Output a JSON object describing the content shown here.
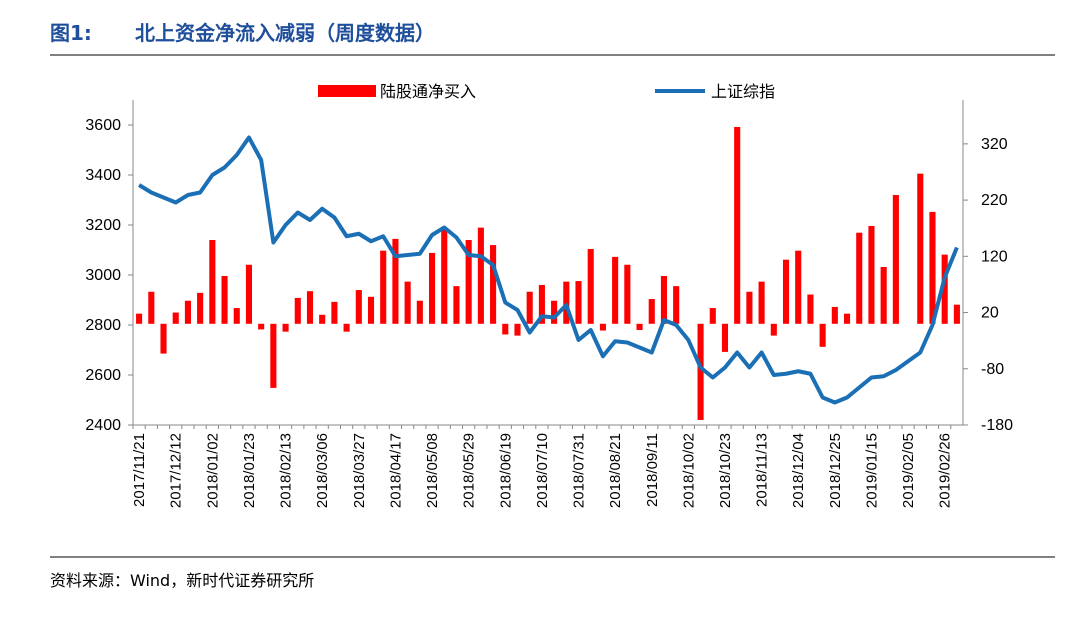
{
  "header": {
    "label": "图1:",
    "title": "北上资金净流入减弱（周度数据）"
  },
  "chart_data": {
    "type": "bar-line",
    "categories": [
      "2017/11/21",
      null,
      null,
      "2017/12/12",
      null,
      null,
      "2018/01/02",
      null,
      null,
      "2018/01/23",
      null,
      null,
      "2018/02/13",
      null,
      null,
      "2018/03/06",
      null,
      null,
      "2018/03/27",
      null,
      null,
      "2018/04/17",
      null,
      null,
      "2018/05/08",
      null,
      null,
      "2018/05/29",
      null,
      null,
      "2018/06/19",
      null,
      null,
      "2018/07/10",
      null,
      null,
      "2018/07/31",
      null,
      null,
      "2018/08/21",
      null,
      null,
      "2018/09/11",
      null,
      null,
      "2018/10/02",
      null,
      null,
      "2018/10/23",
      null,
      null,
      "2018/11/13",
      null,
      null,
      "2018/12/04",
      null,
      null,
      "2018/12/25",
      null,
      null,
      "2019/01/15",
      null,
      null,
      "2019/02/05",
      null,
      null,
      "2019/02/26",
      null
    ],
    "series": [
      {
        "name": "陆股通净买入",
        "type": "bar",
        "axis": "y2",
        "color": "#ff0000",
        "values": [
          18,
          57,
          -53,
          20,
          41,
          55,
          149,
          85,
          28,
          105,
          -10,
          -114,
          -14,
          46,
          58,
          16,
          39,
          -14,
          60,
          48,
          130,
          151,
          75,
          41,
          126,
          167,
          67,
          149,
          171,
          140,
          -19,
          -21,
          57,
          69,
          41,
          75,
          76,
          133,
          -12,
          119,
          105,
          -11,
          44,
          85,
          67,
          0,
          -171,
          28,
          -50,
          350,
          57,
          75,
          -21,
          114,
          130,
          52,
          -41,
          30,
          18,
          162,
          174,
          101,
          229,
          0,
          267,
          199,
          123,
          34
        ]
      },
      {
        "name": "上证综指",
        "type": "line",
        "color": "#1a6fb5",
        "values": [
          3360,
          3330,
          3310,
          3290,
          3320,
          3330,
          3400,
          3430,
          3480,
          3550,
          3460,
          3130,
          3200,
          3250,
          3220,
          3265,
          3230,
          3155,
          3165,
          3135,
          3155,
          3075,
          3080,
          3085,
          3160,
          3190,
          3150,
          3080,
          3075,
          3040,
          2890,
          2860,
          2770,
          2835,
          2830,
          2880,
          2740,
          2780,
          2675,
          2735,
          2730,
          2710,
          2690,
          2820,
          2800,
          2740,
          2630,
          2590,
          2630,
          2690,
          2630,
          2690,
          2600,
          2605,
          2615,
          2605,
          2510,
          2490,
          2510,
          2550,
          2590,
          2595,
          2620,
          2655,
          2690,
          2800,
          2990,
          3110
        ]
      }
    ],
    "ylim": [
      2400,
      3700
    ],
    "yticks": [
      2400,
      2600,
      2800,
      3000,
      3200,
      3400,
      3600
    ],
    "y2lim": [
      -180,
      398
    ],
    "y2ticks": [
      -180,
      -80,
      20,
      120,
      220,
      320
    ]
  },
  "footer": {
    "source": "资料来源：Wind，新时代证券研究所"
  }
}
